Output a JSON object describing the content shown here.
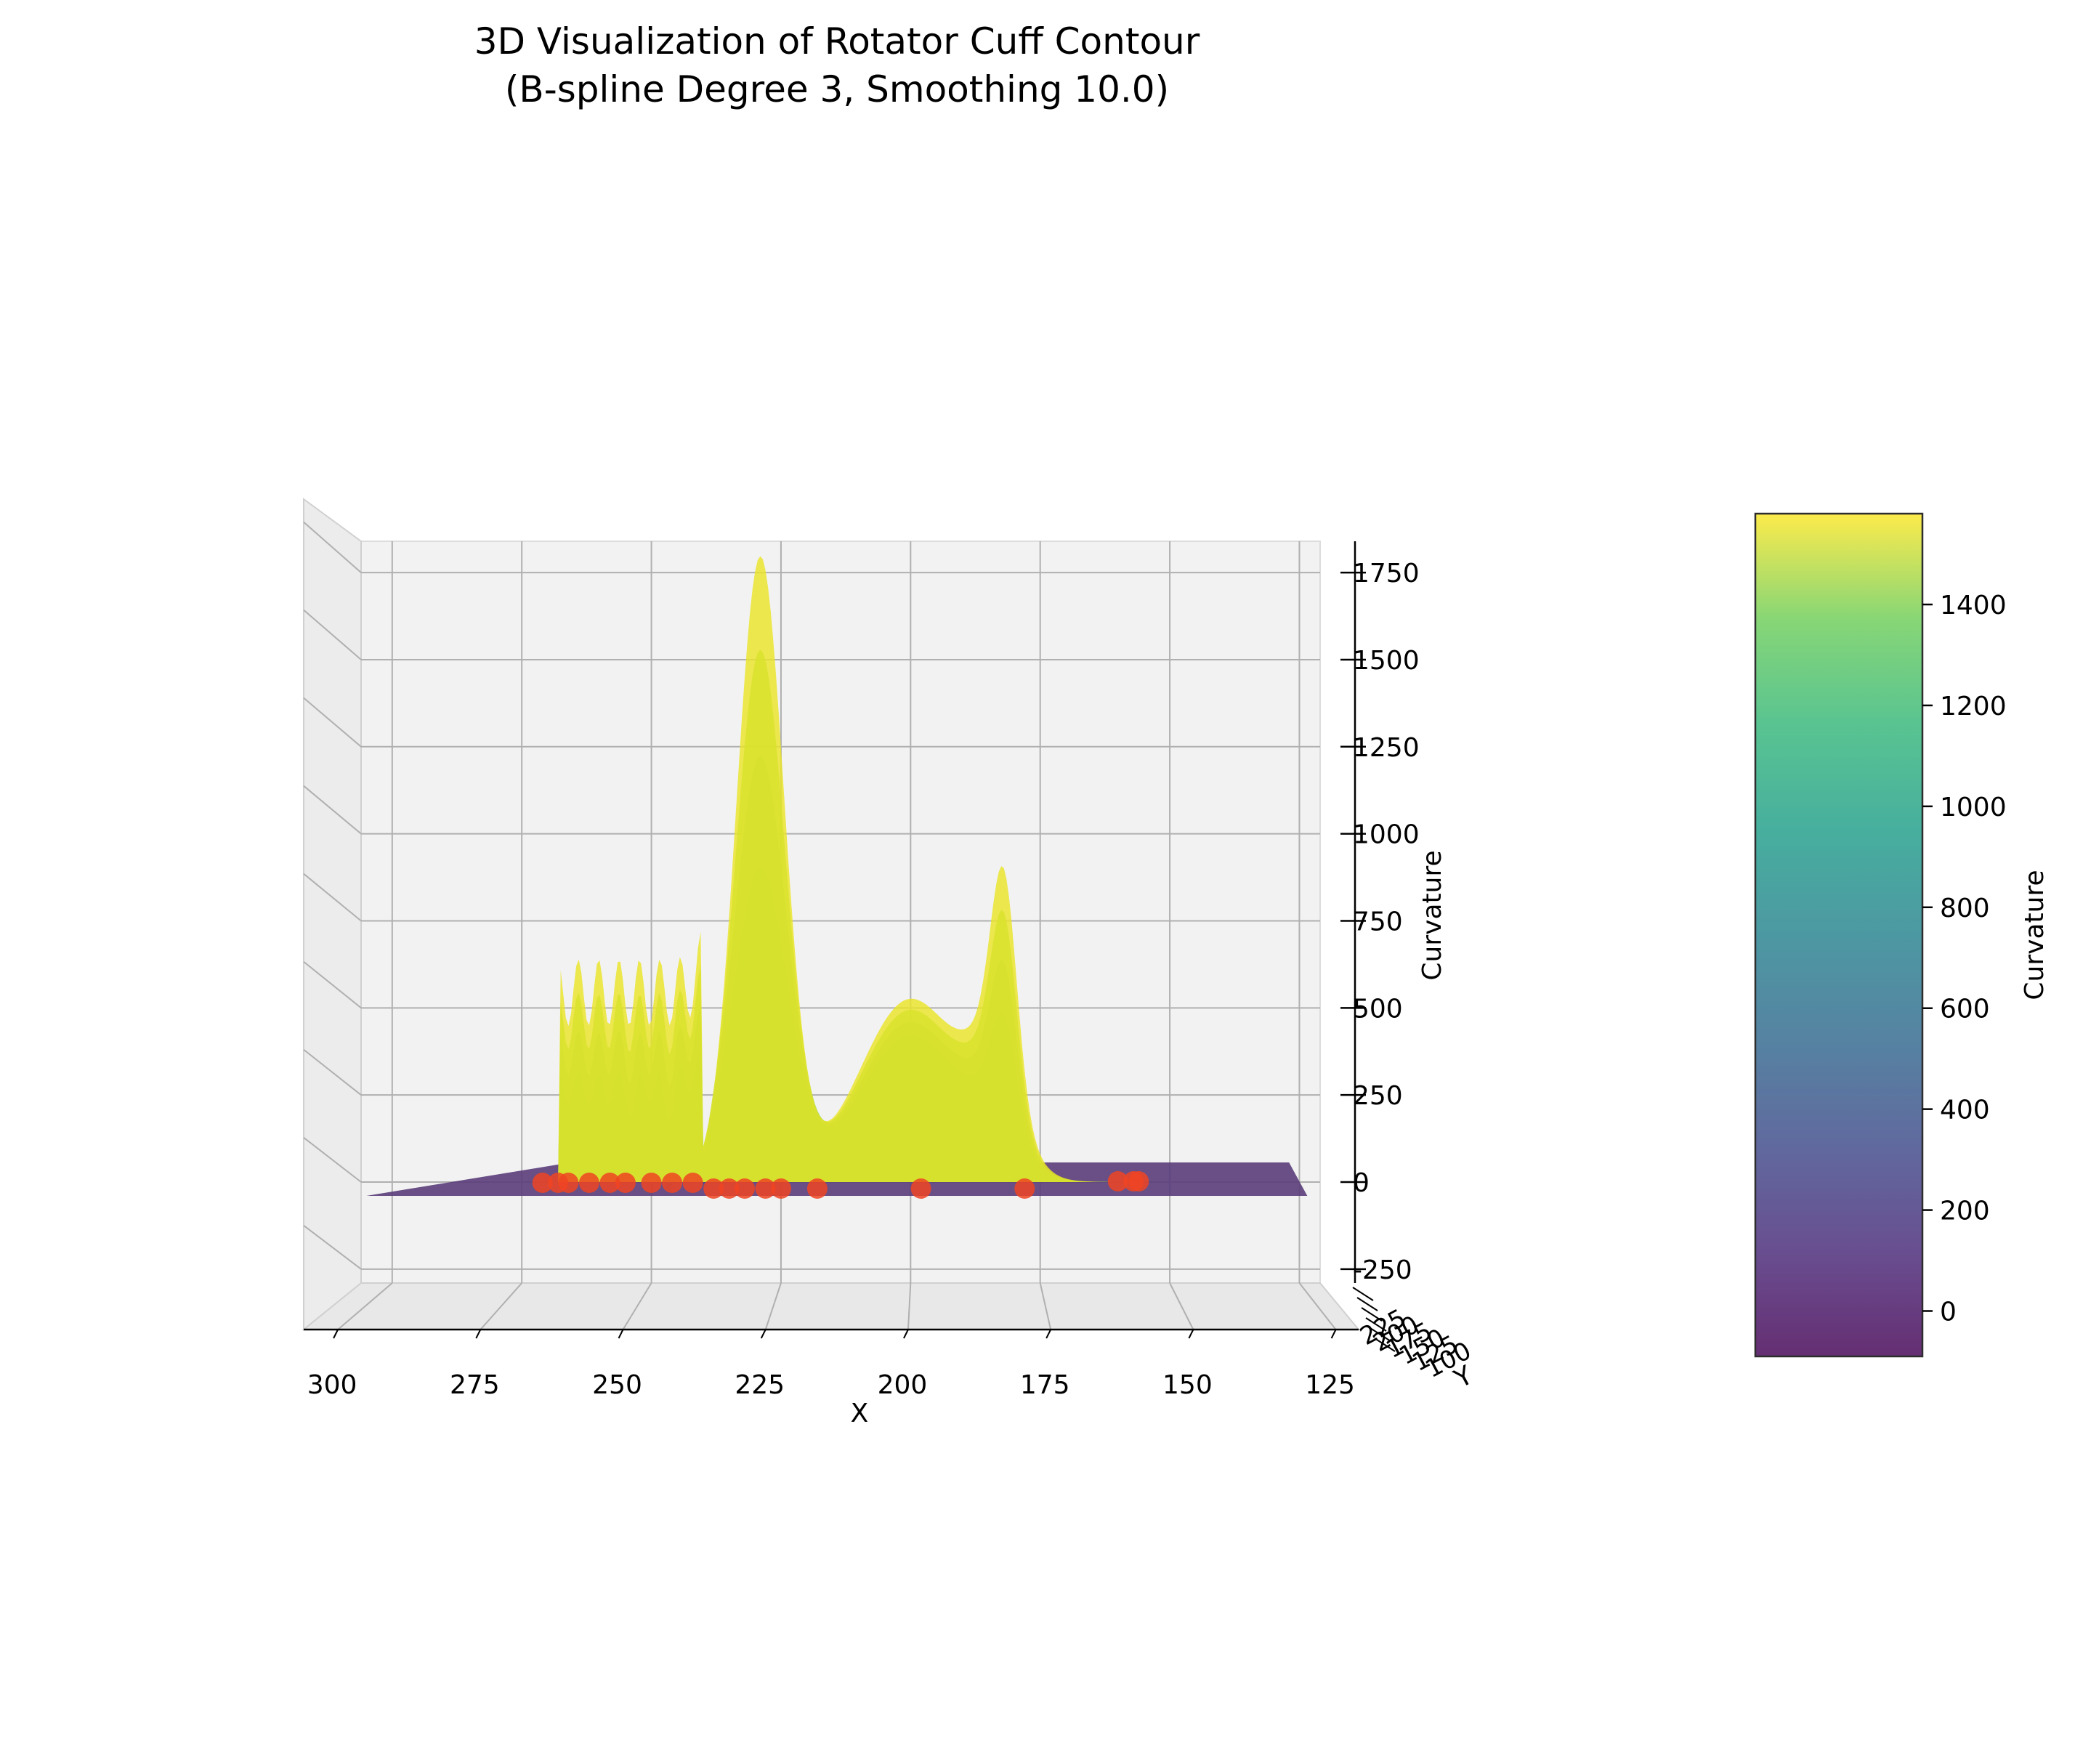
{
  "chart_data": {
    "type": "surface3d",
    "title_line1": "3D Visualization of Rotator Cuff Contour",
    "title_line2": "(B-spline Degree 3, Smoothing 10.0)",
    "xlabel": "X",
    "ylabel": "Y",
    "zlabel": "Curvature",
    "xticks": [
      300,
      275,
      250,
      225,
      200,
      175,
      150,
      125
    ],
    "zticks": [
      1750,
      1500,
      1250,
      1000,
      750,
      500,
      250,
      0,
      -250
    ],
    "yticks_overlapping": [
      "225",
      "200",
      "175",
      "150",
      "125",
      "100"
    ],
    "xlim": [
      306,
      121
    ],
    "zlim": [
      -290,
      1840
    ],
    "colormap": "viridis",
    "colorbar": {
      "label": "Curvature",
      "ticks": [
        1400,
        1200,
        1000,
        800,
        600,
        400,
        200,
        0
      ],
      "range": [
        -90,
        1580
      ]
    },
    "main_peak": {
      "x": 229,
      "curvature": 1790
    },
    "secondary_peak": {
      "x": 182,
      "curvature": 820
    },
    "smooth_hump": {
      "x": 200,
      "curvature": 525
    },
    "contour_points_x": [
      271,
      268,
      266,
      262,
      258,
      255,
      250,
      246,
      242,
      238,
      235,
      232,
      228,
      225,
      218,
      198,
      178,
      160,
      157,
      156
    ],
    "contour_point_color": "#ee4422",
    "base_plane_color": "#5a3d7a"
  }
}
